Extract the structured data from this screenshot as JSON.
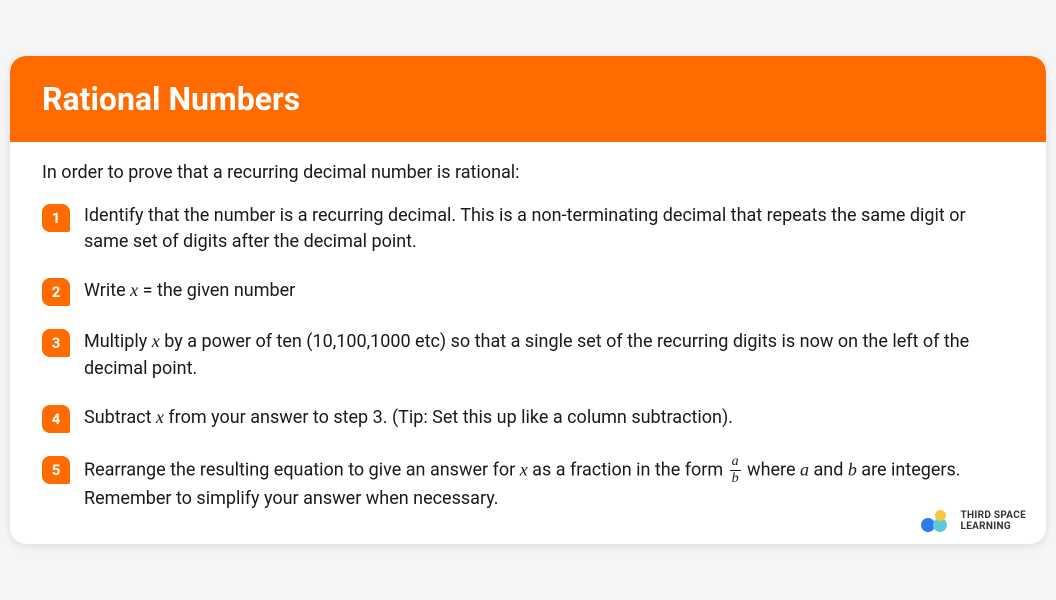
{
  "colors": {
    "accent": "#ff6b00",
    "text": "#1a1a1a",
    "logo_blue": "#2b7de9",
    "logo_teal": "#5fc9d8",
    "logo_yellow": "#f5c842"
  },
  "header": {
    "title": "Rational Numbers"
  },
  "intro": "In order to prove that a recurring decimal number is rational:",
  "steps": [
    {
      "num": "1",
      "text": "Identify that the number is a recurring decimal. This is a non-terminating decimal that repeats the same digit or same set of digits after the decimal point."
    },
    {
      "num": "2",
      "prefix": "Write ",
      "var1": "x",
      "suffix": " = the given number"
    },
    {
      "num": "3",
      "prefix": "Multiply ",
      "var1": "x",
      "suffix": " by a power of ten (10,100,1000 etc) so that a single set of the recurring digits is now on the left of the decimal point."
    },
    {
      "num": "4",
      "prefix": "Subtract ",
      "var1": "x",
      "suffix": " from your answer to step 3. (Tip: Set this up like a column subtraction)."
    },
    {
      "num": "5",
      "p1": "Rearrange the resulting equation to give an answer for ",
      "var1": "x",
      "p2": " as a fraction in the form ",
      "frac_num": "a",
      "frac_den": "b",
      "p3": " where ",
      "var2": "a",
      "p4": " and ",
      "var3": "b",
      "p5": " are integers. Remember to simplify your answer when necessary."
    }
  ],
  "logo": {
    "line1": "THIRD SPACE",
    "line2": "LEARNING"
  }
}
